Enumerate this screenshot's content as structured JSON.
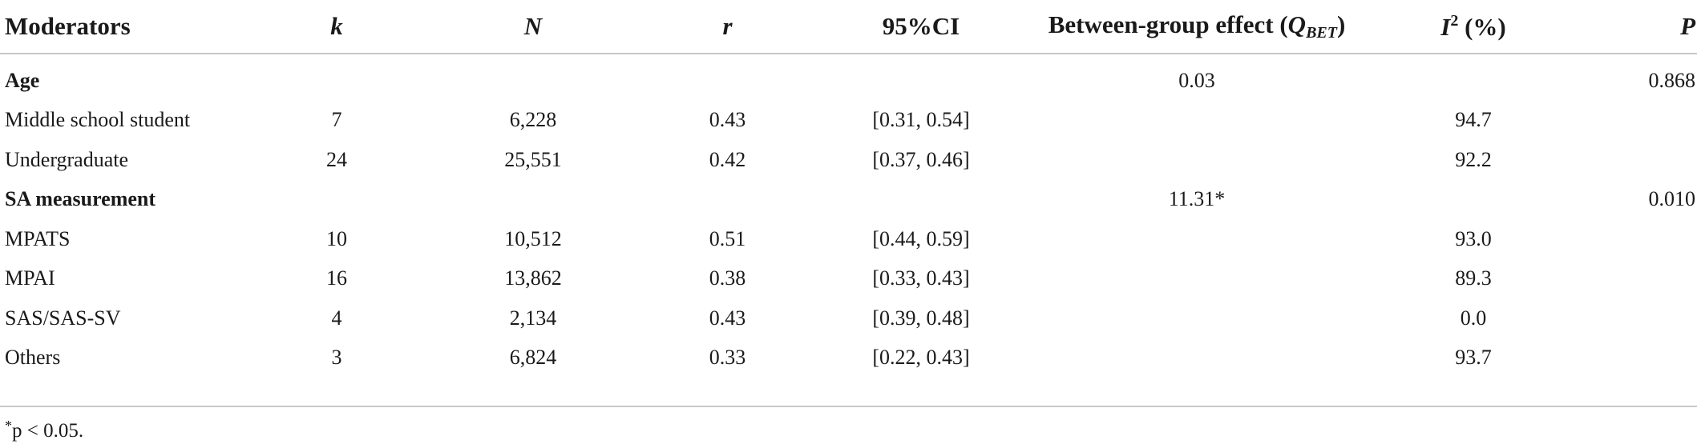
{
  "headers": {
    "moderators": "Moderators",
    "k": "k",
    "n": "N",
    "r": "r",
    "ci": "95%CI",
    "qbet_main": "Between-group effect (",
    "qbet_q": "Q",
    "qbet_sub": "BET",
    "qbet_close": ")",
    "i2_i": "I",
    "i2_sup": "2",
    "i2_unit": " (%)",
    "p": "P"
  },
  "rows": [
    {
      "label": "Age",
      "k": "",
      "n": "",
      "r": "",
      "ci": "",
      "qbet": "0.03",
      "i2": "",
      "p": "0.868"
    },
    {
      "label": "Middle school student",
      "k": "7",
      "n": "6,228",
      "r": "0.43",
      "ci": "[0.31, 0.54]",
      "qbet": "",
      "i2": "94.7",
      "p": ""
    },
    {
      "label": "Undergraduate",
      "k": "24",
      "n": "25,551",
      "r": "0.42",
      "ci": "[0.37, 0.46]",
      "qbet": "",
      "i2": "92.2",
      "p": ""
    },
    {
      "label": "SA measurement",
      "k": "",
      "n": "",
      "r": "",
      "ci": "",
      "qbet": "11.31*",
      "i2": "",
      "p": "0.010"
    },
    {
      "label": "MPATS",
      "k": "10",
      "n": "10,512",
      "r": "0.51",
      "ci": "[0.44, 0.59]",
      "qbet": "",
      "i2": "93.0",
      "p": ""
    },
    {
      "label": "MPAI",
      "k": "16",
      "n": "13,862",
      "r": "0.38",
      "ci": "[0.33, 0.43]",
      "qbet": "",
      "i2": "89.3",
      "p": ""
    },
    {
      "label": "SAS/SAS-SV",
      "k": "4",
      "n": "2,134",
      "r": "0.43",
      "ci": "[0.39, 0.48]",
      "qbet": "",
      "i2": "0.0",
      "p": ""
    },
    {
      "label": "Others",
      "k": "3",
      "n": "6,824",
      "r": "0.33",
      "ci": "[0.22, 0.43]",
      "qbet": "",
      "i2": "93.7",
      "p": ""
    }
  ],
  "footnote": {
    "star": "*",
    "text": "p < 0.05."
  }
}
